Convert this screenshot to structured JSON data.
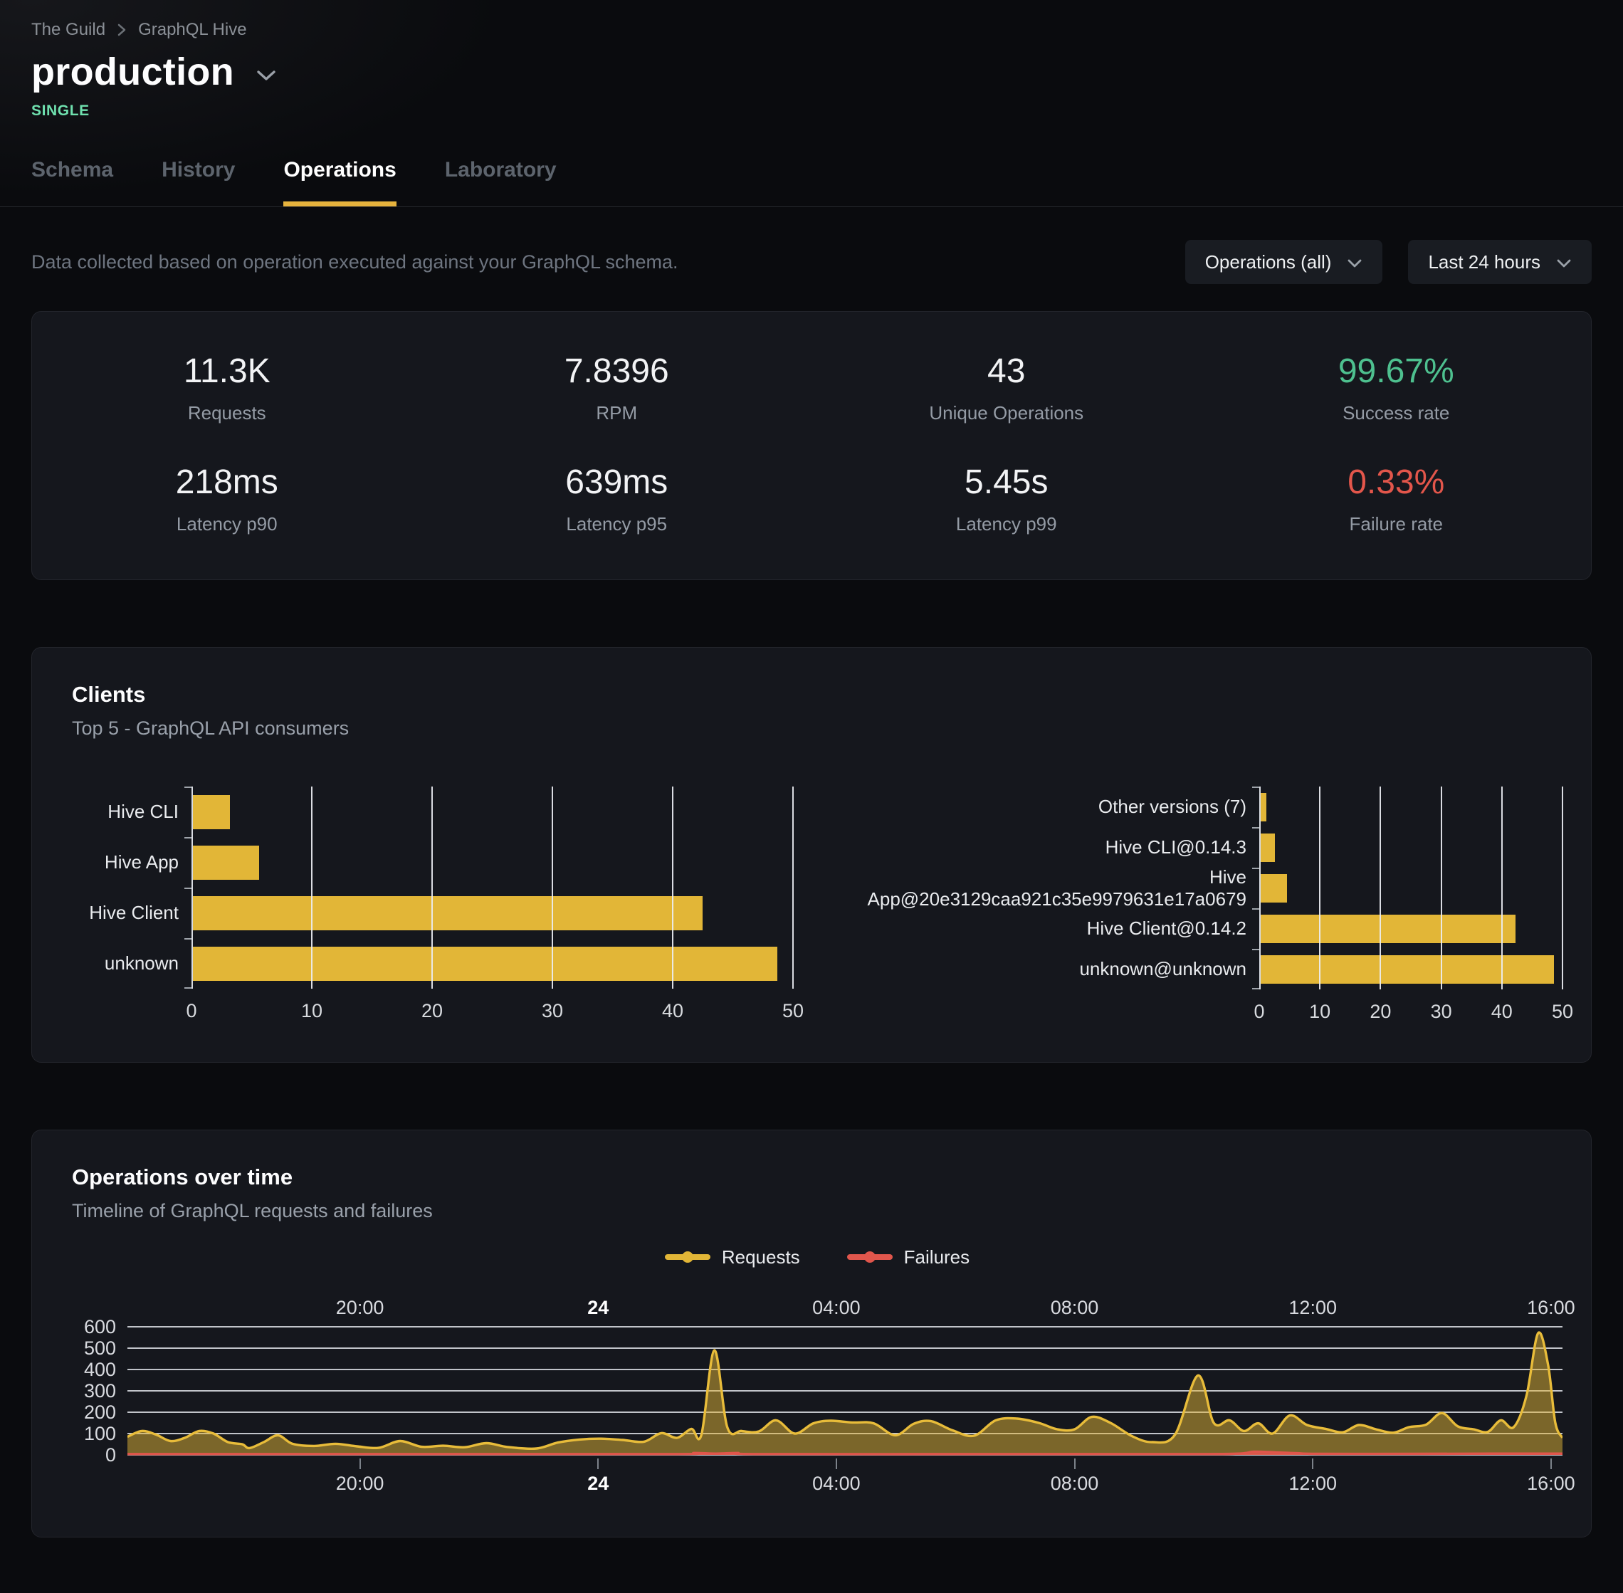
{
  "breadcrumb": {
    "items": [
      "The Guild",
      "GraphQL Hive"
    ]
  },
  "header": {
    "title": "production",
    "badge": "SINGLE"
  },
  "tabs": [
    {
      "label": "Schema",
      "active": false
    },
    {
      "label": "History",
      "active": false
    },
    {
      "label": "Operations",
      "active": true
    },
    {
      "label": "Laboratory",
      "active": false
    }
  ],
  "filters": {
    "description": "Data collected based on operation executed against your GraphQL schema.",
    "operations_dropdown": "Operations (all)",
    "range_dropdown": "Last 24 hours"
  },
  "stats": [
    {
      "value": "11.3K",
      "label": "Requests",
      "color": "#f2f3f5"
    },
    {
      "value": "7.8396",
      "label": "RPM",
      "color": "#f2f3f5"
    },
    {
      "value": "43",
      "label": "Unique Operations",
      "color": "#f2f3f5"
    },
    {
      "value": "99.67%",
      "label": "Success rate",
      "color": "#4ec08f"
    },
    {
      "value": "218ms",
      "label": "Latency p90",
      "color": "#f2f3f5"
    },
    {
      "value": "639ms",
      "label": "Latency p95",
      "color": "#f2f3f5"
    },
    {
      "value": "5.45s",
      "label": "Latency p99",
      "color": "#f2f3f5"
    },
    {
      "value": "0.33%",
      "label": "Failure rate",
      "color": "#e3564b"
    }
  ],
  "clients": {
    "title": "Clients",
    "subtitle": "Top 5 - GraphQL API consumers"
  },
  "operations_over_time": {
    "title": "Operations over time",
    "subtitle": "Timeline of GraphQL requests and failures",
    "legend": [
      {
        "label": "Requests",
        "color": "#e2b637"
      },
      {
        "label": "Failures",
        "color": "#e0564c"
      }
    ]
  },
  "chart_data": [
    {
      "type": "bar",
      "orientation": "horizontal",
      "group": "clients-by-name",
      "categories": [
        "Hive CLI",
        "Hive App",
        "Hive Client",
        "unknown"
      ],
      "values": [
        3.2,
        5.6,
        42.5,
        48.7
      ],
      "xlim": [
        0,
        50
      ],
      "xticks": [
        0,
        10,
        20,
        30,
        40,
        50
      ],
      "bar_color": "#e2b637",
      "grid": true
    },
    {
      "type": "bar",
      "orientation": "horizontal",
      "group": "clients-by-version",
      "categories": [
        "Other versions (7)",
        "Hive CLI@0.14.3",
        "Hive App@20e3129caa921c35e9979631e17a0679",
        "Hive Client@0.14.2",
        "unknown@unknown"
      ],
      "values": [
        1.2,
        2.6,
        4.6,
        42.3,
        48.6
      ],
      "xlim": [
        0,
        50
      ],
      "xticks": [
        0,
        10,
        20,
        30,
        40,
        50
      ],
      "bar_color": "#e2b637",
      "grid": true
    },
    {
      "type": "area",
      "group": "operations-over-time",
      "ylim": [
        0,
        600
      ],
      "yticks": [
        0,
        100,
        200,
        300,
        400,
        500,
        600
      ],
      "grid": true,
      "x_ticks": [
        {
          "label": "20:00",
          "pos": 0.162,
          "bold": false
        },
        {
          "label": "24",
          "pos": 0.328,
          "bold": true
        },
        {
          "label": "04:00",
          "pos": 0.494,
          "bold": false
        },
        {
          "label": "08:00",
          "pos": 0.66,
          "bold": false
        },
        {
          "label": "12:00",
          "pos": 0.826,
          "bold": false
        },
        {
          "label": "16:00",
          "pos": 0.992,
          "bold": false
        }
      ],
      "series": [
        {
          "name": "Requests",
          "color": "#e8bc3a",
          "fill": "rgba(226,182,55,0.5)",
          "points": [
            [
              0,
              85
            ],
            [
              0.01,
              112
            ],
            [
              0.02,
              95
            ],
            [
              0.03,
              65
            ],
            [
              0.04,
              80
            ],
            [
              0.05,
              112
            ],
            [
              0.06,
              100
            ],
            [
              0.07,
              60
            ],
            [
              0.08,
              50
            ],
            [
              0.085,
              32
            ],
            [
              0.095,
              60
            ],
            [
              0.105,
              92
            ],
            [
              0.115,
              52
            ],
            [
              0.13,
              42
            ],
            [
              0.145,
              52
            ],
            [
              0.16,
              40
            ],
            [
              0.175,
              33
            ],
            [
              0.19,
              65
            ],
            [
              0.205,
              38
            ],
            [
              0.22,
              43
            ],
            [
              0.235,
              36
            ],
            [
              0.25,
              55
            ],
            [
              0.265,
              37
            ],
            [
              0.285,
              30
            ],
            [
              0.3,
              58
            ],
            [
              0.315,
              72
            ],
            [
              0.33,
              76
            ],
            [
              0.345,
              70
            ],
            [
              0.36,
              62
            ],
            [
              0.372,
              102
            ],
            [
              0.383,
              80
            ],
            [
              0.393,
              122
            ],
            [
              0.4,
              95
            ],
            [
              0.409,
              490
            ],
            [
              0.418,
              130
            ],
            [
              0.428,
              112
            ],
            [
              0.44,
              110
            ],
            [
              0.452,
              162
            ],
            [
              0.465,
              100
            ],
            [
              0.478,
              148
            ],
            [
              0.49,
              160
            ],
            [
              0.505,
              152
            ],
            [
              0.52,
              148
            ],
            [
              0.535,
              92
            ],
            [
              0.548,
              146
            ],
            [
              0.56,
              158
            ],
            [
              0.575,
              115
            ],
            [
              0.59,
              90
            ],
            [
              0.605,
              162
            ],
            [
              0.62,
              170
            ],
            [
              0.635,
              150
            ],
            [
              0.648,
              120
            ],
            [
              0.66,
              120
            ],
            [
              0.672,
              178
            ],
            [
              0.685,
              150
            ],
            [
              0.7,
              88
            ],
            [
              0.714,
              60
            ],
            [
              0.73,
              95
            ],
            [
              0.746,
              372
            ],
            [
              0.757,
              150
            ],
            [
              0.768,
              162
            ],
            [
              0.778,
              112
            ],
            [
              0.788,
              148
            ],
            [
              0.798,
              100
            ],
            [
              0.81,
              185
            ],
            [
              0.822,
              140
            ],
            [
              0.835,
              122
            ],
            [
              0.847,
              106
            ],
            [
              0.858,
              140
            ],
            [
              0.87,
              120
            ],
            [
              0.882,
              104
            ],
            [
              0.893,
              130
            ],
            [
              0.905,
              142
            ],
            [
              0.916,
              196
            ],
            [
              0.927,
              134
            ],
            [
              0.938,
              120
            ],
            [
              0.948,
              108
            ],
            [
              0.957,
              162
            ],
            [
              0.966,
              130
            ],
            [
              0.975,
              280
            ],
            [
              0.983,
              570
            ],
            [
              0.99,
              420
            ],
            [
              0.995,
              150
            ],
            [
              1,
              80
            ]
          ]
        },
        {
          "name": "Failures",
          "color": "#e0564c",
          "fill": "rgba(224,86,76,0.9)",
          "points": [
            [
              0,
              4
            ],
            [
              0.2,
              4
            ],
            [
              0.38,
              4
            ],
            [
              0.395,
              9
            ],
            [
              0.41,
              6
            ],
            [
              0.425,
              9
            ],
            [
              0.44,
              4
            ],
            [
              0.6,
              4
            ],
            [
              0.7,
              4
            ],
            [
              0.77,
              5
            ],
            [
              0.785,
              15
            ],
            [
              0.8,
              12
            ],
            [
              0.815,
              8
            ],
            [
              0.83,
              5
            ],
            [
              0.9,
              5
            ],
            [
              0.95,
              6
            ],
            [
              1,
              6
            ]
          ]
        }
      ]
    }
  ]
}
